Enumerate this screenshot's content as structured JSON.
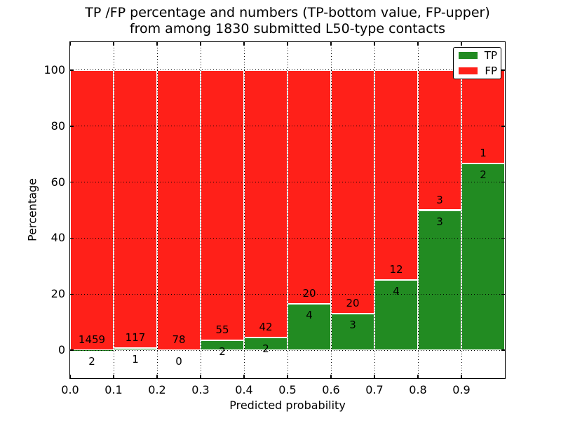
{
  "title": {
    "line1": "TP /FP percentage and numbers (TP-bottom value, FP-upper)",
    "line2": "from among 1830 submitted L50-type contacts"
  },
  "axes": {
    "xlabel": "Predicted probability",
    "ylabel": "Percentage",
    "yticks": [
      0,
      20,
      40,
      60,
      80,
      100
    ],
    "xticks": [
      "0.0",
      "0.1",
      "0.2",
      "0.3",
      "0.4",
      "0.5",
      "0.6",
      "0.7",
      "0.8",
      "0.9"
    ],
    "ylim": [
      -10,
      110
    ],
    "xlim": [
      0.0,
      1.0
    ]
  },
  "legend": {
    "items": [
      {
        "label": "TP",
        "colorKey": "tp"
      },
      {
        "label": "FP",
        "colorKey": "fp"
      }
    ]
  },
  "colors": {
    "tp": "#228b22",
    "fp": "#ff2019",
    "bar_edge": "#ffffff",
    "grid": "#000000",
    "spine": "#000000",
    "text": "#000000",
    "background": "#ffffff"
  },
  "chart_data": {
    "type": "bar",
    "stacked": true,
    "values_are": "TP and FP shares of each bin normalized to 100%; annotated numbers are raw counts (TP bottom value, FP upper)",
    "title": "TP /FP percentage and numbers (TP-bottom value, FP-upper) from among 1830 submitted L50-type contacts",
    "xlabel": "Predicted probability",
    "ylabel": "Percentage",
    "ylim": [
      -10,
      110
    ],
    "grid": true,
    "legend_position": "upper right",
    "bin_width": 0.1,
    "bins": [
      {
        "range": "0.0-0.1",
        "tp": 2,
        "fp": 1459
      },
      {
        "range": "0.1-0.2",
        "tp": 1,
        "fp": 117
      },
      {
        "range": "0.2-0.3",
        "tp": 0,
        "fp": 78
      },
      {
        "range": "0.3-0.4",
        "tp": 2,
        "fp": 55
      },
      {
        "range": "0.4-0.5",
        "tp": 2,
        "fp": 42
      },
      {
        "range": "0.5-0.6",
        "tp": 4,
        "fp": 20
      },
      {
        "range": "0.6-0.7",
        "tp": 3,
        "fp": 20
      },
      {
        "range": "0.7-0.8",
        "tp": 4,
        "fp": 12
      },
      {
        "range": "0.8-0.9",
        "tp": 3,
        "fp": 3
      },
      {
        "range": "0.9-1.0",
        "tp": 2,
        "fp": 1
      }
    ],
    "tp_percent_by_bin": [
      0.14,
      0.85,
      0.0,
      3.51,
      4.55,
      16.67,
      13.04,
      25.0,
      50.0,
      66.67
    ],
    "total_submitted": 1830
  }
}
